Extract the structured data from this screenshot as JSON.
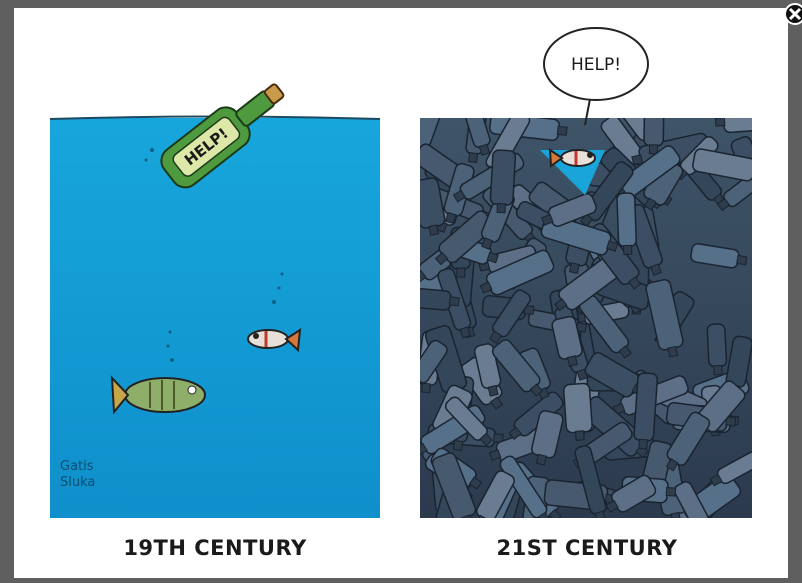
{
  "cartoon": {
    "left_panel": {
      "bottle_text": "HELP!",
      "signature": [
        "Gatis",
        "Sluka"
      ],
      "caption": "19TH CENTURY"
    },
    "right_panel": {
      "speech_bubble": "HELP!",
      "caption": "21ST CENTURY"
    }
  }
}
